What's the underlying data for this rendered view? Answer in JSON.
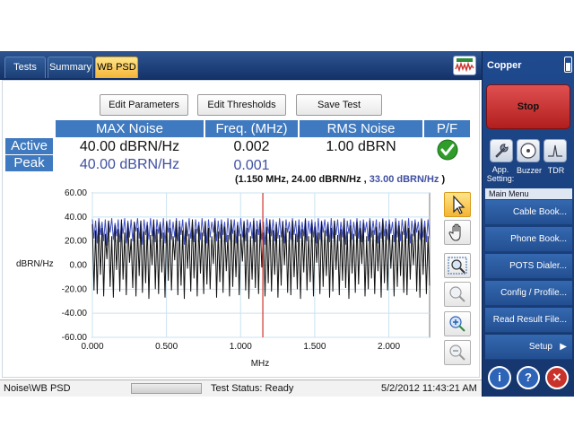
{
  "tabs": [
    {
      "label": "Tests"
    },
    {
      "label": "Summary"
    },
    {
      "label": "WB PSD"
    }
  ],
  "toolbar": {
    "edit_parameters": "Edit Parameters",
    "edit_thresholds": "Edit Thresholds",
    "save_test": "Save Test"
  },
  "results": {
    "headers": [
      "MAX Noise",
      "Freq. (MHz)",
      "RMS Noise",
      "P/F"
    ],
    "active": {
      "label": "Active",
      "max_noise": "40.00 dBRN/Hz",
      "freq": "0.002",
      "rms_noise": "1.00 dBRN"
    },
    "peak": {
      "label": "Peak",
      "max_noise": "40.00 dBRN/Hz",
      "freq": "0.001"
    },
    "pass_color": "#2e9d2a"
  },
  "cursor_readout": {
    "open": "(",
    "position": "1.150 MHz, 24.00 dBRN/Hz ,",
    "peak_value": "33.00 dBRN/Hz",
    "close": ")"
  },
  "chart_data": {
    "type": "line",
    "ylabel": "dBRN/Hz",
    "xlabel": "MHz",
    "xlim": [
      0.0,
      2.275
    ],
    "ylim": [
      -60,
      60
    ],
    "x_ticks": [
      "0.000",
      "0.500",
      "1.000",
      "1.500",
      "2.000"
    ],
    "y_ticks": [
      "60.00",
      "40.00",
      "20.00",
      "0.00",
      "-20.00",
      "-40.00",
      "-60.00"
    ],
    "grid": true,
    "cursor_x": 1.15,
    "cursor_color": "#d2322a",
    "series": [
      {
        "role": "peak",
        "color": "#3f4fbf",
        "values": [
          38,
          22,
          37,
          18,
          39,
          25,
          36,
          20,
          38,
          16,
          37,
          27,
          39,
          21,
          35,
          24,
          38,
          19,
          36,
          26,
          39,
          18,
          37,
          23,
          38,
          20,
          36,
          28,
          39,
          22,
          37,
          17,
          38,
          25,
          36,
          21,
          39,
          24,
          37,
          19,
          38,
          26,
          36,
          22,
          39,
          18,
          37,
          27,
          38,
          21,
          36,
          23,
          39,
          20,
          37,
          25,
          38,
          17,
          36,
          24,
          39,
          22,
          37,
          19,
          38,
          26,
          36,
          21,
          39,
          24,
          37,
          18,
          38,
          23,
          36,
          27,
          39,
          20,
          37,
          22,
          38,
          25,
          36,
          19,
          39,
          21,
          37,
          26,
          38,
          18,
          36,
          24,
          39,
          23,
          37,
          20,
          38,
          27,
          36,
          22,
          39,
          19,
          37,
          25,
          38,
          21,
          36,
          17,
          39,
          26,
          37,
          24,
          38,
          20,
          36,
          22,
          39,
          23,
          37,
          18,
          38,
          27,
          36,
          21,
          39,
          25,
          37,
          19,
          38,
          22,
          36,
          24,
          39,
          20,
          37,
          26,
          38,
          23,
          36,
          18,
          39,
          21,
          37,
          27,
          38,
          24,
          36,
          19,
          39,
          22,
          37,
          25,
          38,
          20,
          36,
          23,
          39,
          17,
          37,
          26,
          38,
          21,
          36,
          24,
          39,
          22,
          37,
          19,
          38,
          27,
          36,
          20,
          39,
          23,
          37,
          25,
          38,
          18,
          36,
          22,
          39,
          24,
          37,
          21,
          38,
          26,
          36,
          19,
          39,
          23,
          37,
          20,
          38,
          25,
          36,
          22,
          39,
          18,
          37,
          24,
          38,
          27,
          36,
          21,
          39,
          23,
          37,
          19,
          38,
          22
        ]
      },
      {
        "role": "active",
        "color": "#111111",
        "values": [
          34,
          -21,
          29,
          -24,
          36,
          -8,
          31,
          -26,
          26,
          5,
          37,
          -18,
          24,
          -27,
          33,
          -4,
          30,
          -22,
          38,
          -12,
          27,
          -25,
          35,
          2,
          22,
          -19,
          36,
          -26,
          31,
          -9,
          37,
          -23,
          28,
          -15,
          33,
          -28,
          25,
          0,
          38,
          -20,
          30,
          -24,
          34,
          -6,
          27,
          -27,
          36,
          -13,
          31,
          -21,
          24,
          4,
          37,
          -25,
          32,
          -17,
          29,
          -28,
          35,
          -3,
          26,
          -22,
          38,
          -11,
          30,
          -26,
          33,
          -7,
          27,
          -24,
          36,
          -16,
          31,
          -20,
          24,
          1,
          37,
          -27,
          28,
          -14,
          34,
          -23,
          32,
          -5,
          25,
          -26,
          38,
          -18,
          29,
          -10,
          33,
          -25,
          26,
          3,
          36,
          -21,
          31,
          -28,
          24,
          -12,
          37,
          -19,
          30,
          -24,
          35,
          -2,
          27,
          -26,
          32,
          -15,
          38,
          -22,
          29,
          -8,
          34,
          -27,
          25,
          -17,
          36,
          0,
          31,
          -23,
          28,
          -25,
          37,
          -10,
          26,
          -20,
          33,
          -28,
          30,
          -6,
          38,
          -21,
          24,
          -14,
          35,
          -26,
          32,
          2,
          27,
          -24,
          36,
          -18,
          29,
          -9,
          34,
          -27,
          31,
          -22,
          37,
          -4,
          25,
          -25,
          30,
          -13,
          38,
          -19,
          28,
          -28,
          33,
          -7,
          26,
          -23,
          36,
          -16,
          31,
          1,
          35,
          -26,
          24,
          -20,
          37,
          -11,
          29,
          -24,
          32,
          -5,
          27,
          -27,
          38,
          -15,
          30,
          -21,
          34,
          -3,
          25,
          -26,
          36,
          -18,
          33,
          -9,
          28,
          -23,
          37,
          -25,
          31,
          -12,
          26,
          0,
          35,
          -22,
          29,
          -27,
          38,
          -8,
          32,
          -24,
          24,
          -17
        ]
      }
    ]
  },
  "status": {
    "path": "Noise\\WB PSD",
    "test_status": "Test Status: Ready",
    "datetime": "5/2/2012 11:43:21 AM"
  },
  "right_panel": {
    "title": "Copper",
    "stop_label": "Stop",
    "quick": [
      {
        "label": "App.\nSetting:"
      },
      {
        "label": "Buzzer"
      },
      {
        "label": "TDR"
      }
    ],
    "main_menu_title": "Main Menu",
    "menu_items": [
      {
        "label": "Cable Book..."
      },
      {
        "label": "Phone Book..."
      },
      {
        "label": "POTS Dialer..."
      },
      {
        "label": "Config / Profile..."
      },
      {
        "label": "Read Result File..."
      },
      {
        "label": "Setup"
      }
    ],
    "setup_arrow": "▶",
    "bottom_buttons": [
      {
        "icon": "info-icon",
        "glyph": "i",
        "color": "#2d64b8"
      },
      {
        "icon": "help-icon",
        "glyph": "?",
        "color": "#2d64b8"
      },
      {
        "icon": "close-icon",
        "glyph": "✕",
        "color": "#c8322a"
      }
    ]
  }
}
